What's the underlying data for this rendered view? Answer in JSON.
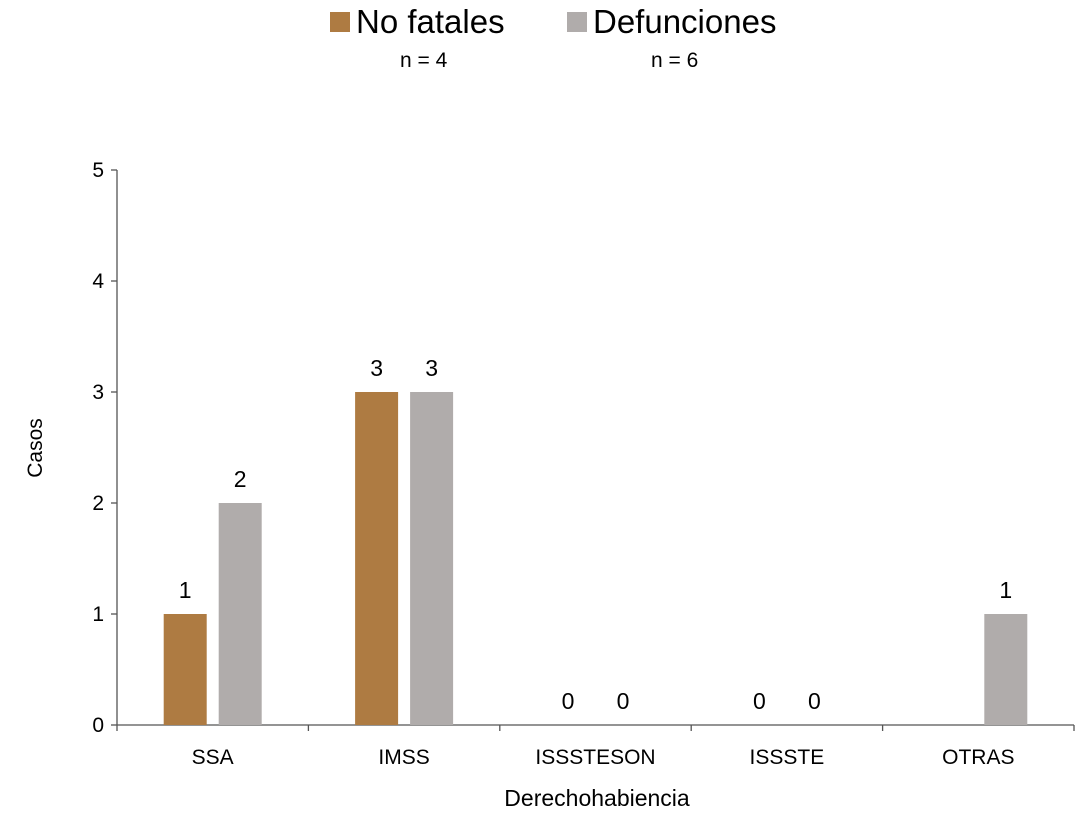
{
  "chart_data": {
    "type": "bar",
    "categories": [
      "SSA",
      "IMSS",
      "ISSSTESON",
      "ISSSTE",
      "OTRAS"
    ],
    "series": [
      {
        "name": "No fatales",
        "n_label": "n = 4",
        "color": "#AE7B42",
        "values": [
          1,
          3,
          0,
          0,
          0
        ],
        "data_labels": [
          "1",
          "3",
          "0",
          "0",
          ""
        ]
      },
      {
        "name": "Defunciones",
        "n_label": "n = 6",
        "color": "#B0ACAB",
        "values": [
          2,
          3,
          0,
          0,
          1
        ],
        "data_labels": [
          "2",
          "3",
          "0",
          "0",
          "1"
        ]
      }
    ],
    "xlabel": "Derechohabiencia",
    "ylabel": "Casos",
    "ylim": [
      0,
      5
    ],
    "yticks": [
      0,
      1,
      2,
      3,
      4,
      5
    ],
    "grid": false,
    "legend_position": "top-center"
  }
}
